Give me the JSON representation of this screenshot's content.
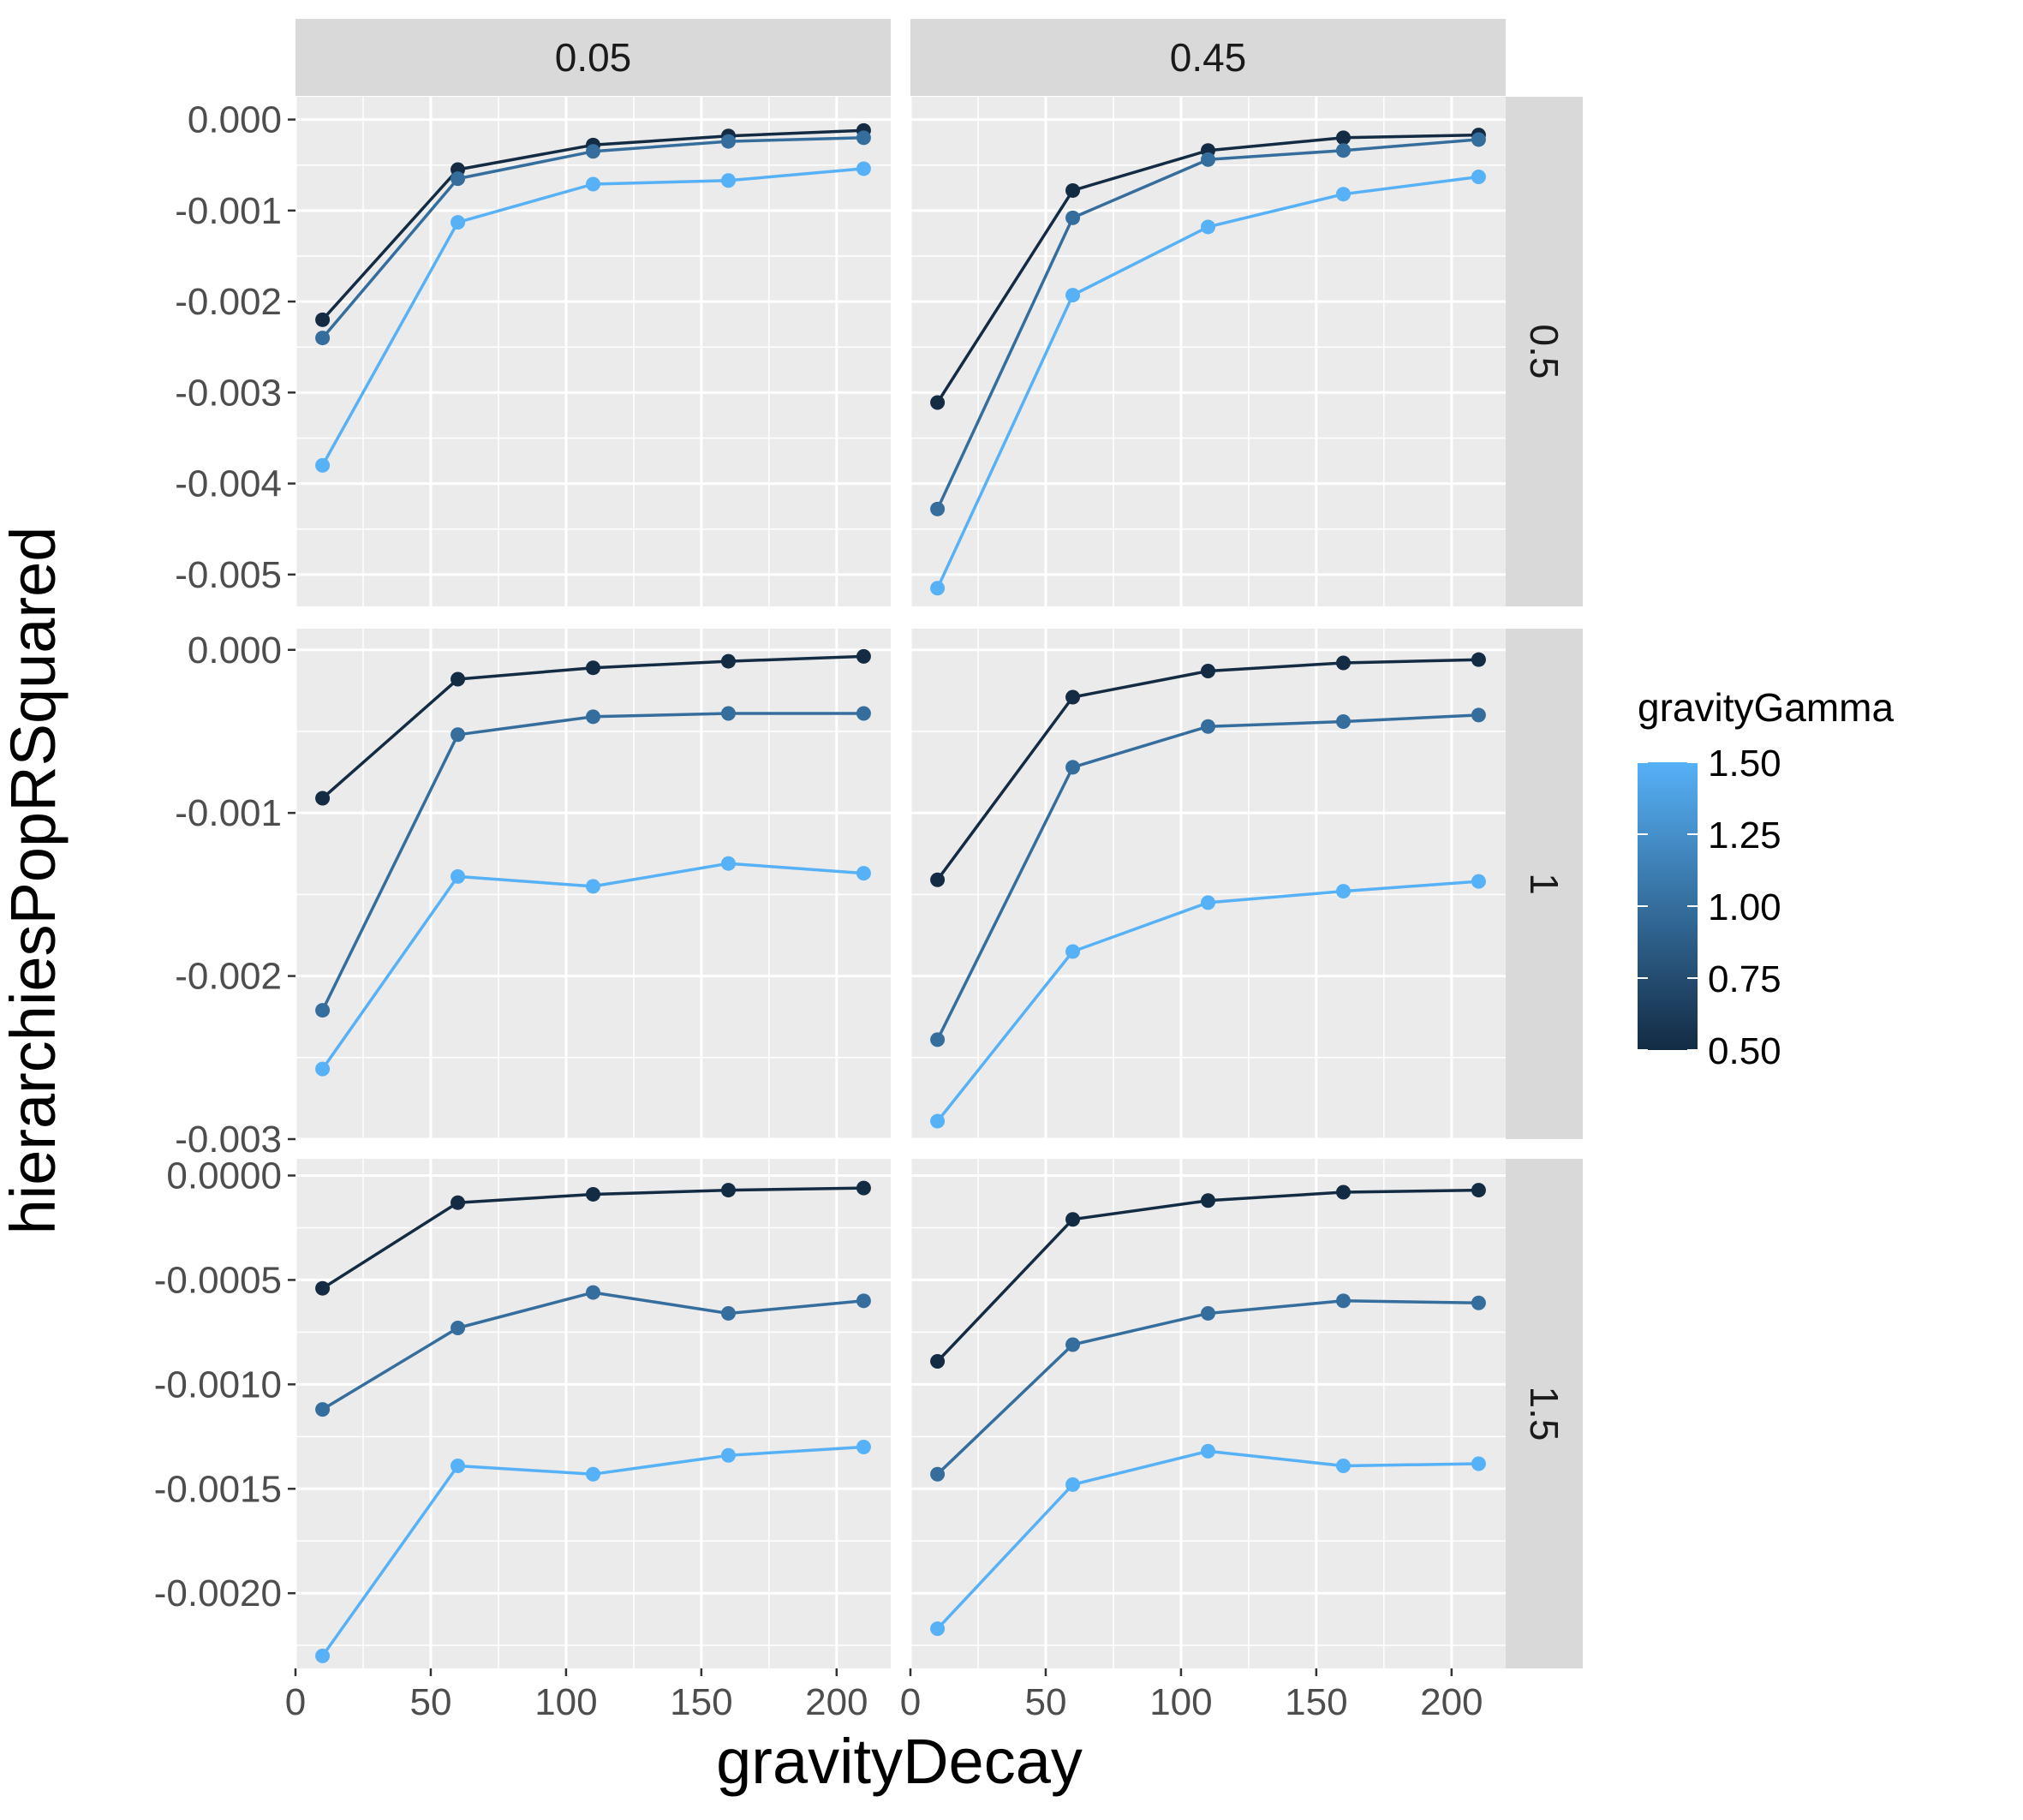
{
  "chart_data": {
    "type": "line",
    "xlabel": "gravityDecay",
    "ylabel": "hierarchiesPopRSquared",
    "col_strips": [
      "0.05",
      "0.45"
    ],
    "row_strips": [
      "0.5",
      "1",
      "1.5"
    ],
    "x": [
      10,
      60,
      110,
      160,
      210
    ],
    "xlim": [
      0,
      220
    ],
    "x_ticks": [
      0,
      50,
      100,
      150,
      200
    ],
    "x_tick_labels": [
      "0",
      "50",
      "100",
      "150",
      "200"
    ],
    "legend": {
      "title": "gravityGamma",
      "position": "right",
      "min": 0.5,
      "max": 1.5,
      "low_color": "#132B43",
      "high_color": "#56B1F7",
      "ticks": [
        0.5,
        0.75,
        1.0,
        1.25,
        1.5
      ],
      "tick_labels": [
        "0.50",
        "0.75",
        "1.00",
        "1.25",
        "1.50"
      ]
    },
    "rows": [
      {
        "ylim": [
          -0.00535,
          0.00025
        ],
        "y_ticks": [
          0,
          -0.001,
          -0.002,
          -0.003,
          -0.004,
          -0.005
        ],
        "y_tick_labels": [
          "0.000",
          "-0.001",
          "-0.002",
          "-0.003",
          "-0.004",
          "-0.005"
        ],
        "panels": [
          {
            "series": [
              {
                "gamma": 0.5,
                "values": [
                  -0.0022,
                  -0.00055,
                  -0.00028,
                  -0.00018,
                  -0.00012
                ]
              },
              {
                "gamma": 1.0,
                "values": [
                  -0.0024,
                  -0.00065,
                  -0.00035,
                  -0.00024,
                  -0.0002
                ]
              },
              {
                "gamma": 1.5,
                "values": [
                  -0.0038,
                  -0.00113,
                  -0.00071,
                  -0.00067,
                  -0.00054
                ]
              }
            ]
          },
          {
            "series": [
              {
                "gamma": 0.5,
                "values": [
                  -0.00311,
                  -0.00078,
                  -0.00034,
                  -0.0002,
                  -0.00017
                ]
              },
              {
                "gamma": 1.0,
                "values": [
                  -0.00428,
                  -0.00108,
                  -0.00044,
                  -0.00034,
                  -0.00022
                ]
              },
              {
                "gamma": 1.5,
                "values": [
                  -0.00515,
                  -0.00193,
                  -0.00118,
                  -0.00082,
                  -0.00063
                ]
              }
            ]
          }
        ]
      },
      {
        "ylim": [
          -0.003,
          0.00013
        ],
        "y_ticks": [
          0,
          -0.001,
          -0.002,
          -0.003
        ],
        "y_tick_labels": [
          "0.000",
          "-0.001",
          "-0.002",
          "-0.003"
        ],
        "panels": [
          {
            "series": [
              {
                "gamma": 0.5,
                "values": [
                  -0.00091,
                  -0.00018,
                  -0.00011,
                  -7e-05,
                  -4e-05
                ]
              },
              {
                "gamma": 1.0,
                "values": [
                  -0.00221,
                  -0.00052,
                  -0.00041,
                  -0.00039,
                  -0.00039
                ]
              },
              {
                "gamma": 1.5,
                "values": [
                  -0.00257,
                  -0.00139,
                  -0.00145,
                  -0.00131,
                  -0.00137
                ]
              }
            ]
          },
          {
            "series": [
              {
                "gamma": 0.5,
                "values": [
                  -0.00141,
                  -0.00029,
                  -0.00013,
                  -8e-05,
                  -6e-05
                ]
              },
              {
                "gamma": 1.0,
                "values": [
                  -0.00239,
                  -0.00072,
                  -0.00047,
                  -0.00044,
                  -0.0004
                ]
              },
              {
                "gamma": 1.5,
                "values": [
                  -0.00289,
                  -0.00185,
                  -0.00155,
                  -0.00148,
                  -0.00142
                ]
              }
            ]
          }
        ]
      },
      {
        "ylim": [
          -0.00236,
          8e-05
        ],
        "y_ticks": [
          0,
          -0.0005,
          -0.001,
          -0.0015,
          -0.002
        ],
        "y_tick_labels": [
          "0.0000",
          "-0.0005",
          "-0.0010",
          "-0.0015",
          "-0.0020"
        ],
        "panels": [
          {
            "series": [
              {
                "gamma": 0.5,
                "values": [
                  -0.00054,
                  -0.00013,
                  -9e-05,
                  -7e-05,
                  -6e-05
                ]
              },
              {
                "gamma": 1.0,
                "values": [
                  -0.00112,
                  -0.00073,
                  -0.00056,
                  -0.00066,
                  -0.0006
                ]
              },
              {
                "gamma": 1.5,
                "values": [
                  -0.0023,
                  -0.00139,
                  -0.00143,
                  -0.00134,
                  -0.0013
                ]
              }
            ]
          },
          {
            "series": [
              {
                "gamma": 0.5,
                "values": [
                  -0.00089,
                  -0.00021,
                  -0.00012,
                  -8e-05,
                  -7e-05
                ]
              },
              {
                "gamma": 1.0,
                "values": [
                  -0.00143,
                  -0.00081,
                  -0.00066,
                  -0.0006,
                  -0.00061
                ]
              },
              {
                "gamma": 1.5,
                "values": [
                  -0.00217,
                  -0.00148,
                  -0.00132,
                  -0.00139,
                  -0.00138
                ]
              }
            ]
          }
        ]
      }
    ]
  }
}
